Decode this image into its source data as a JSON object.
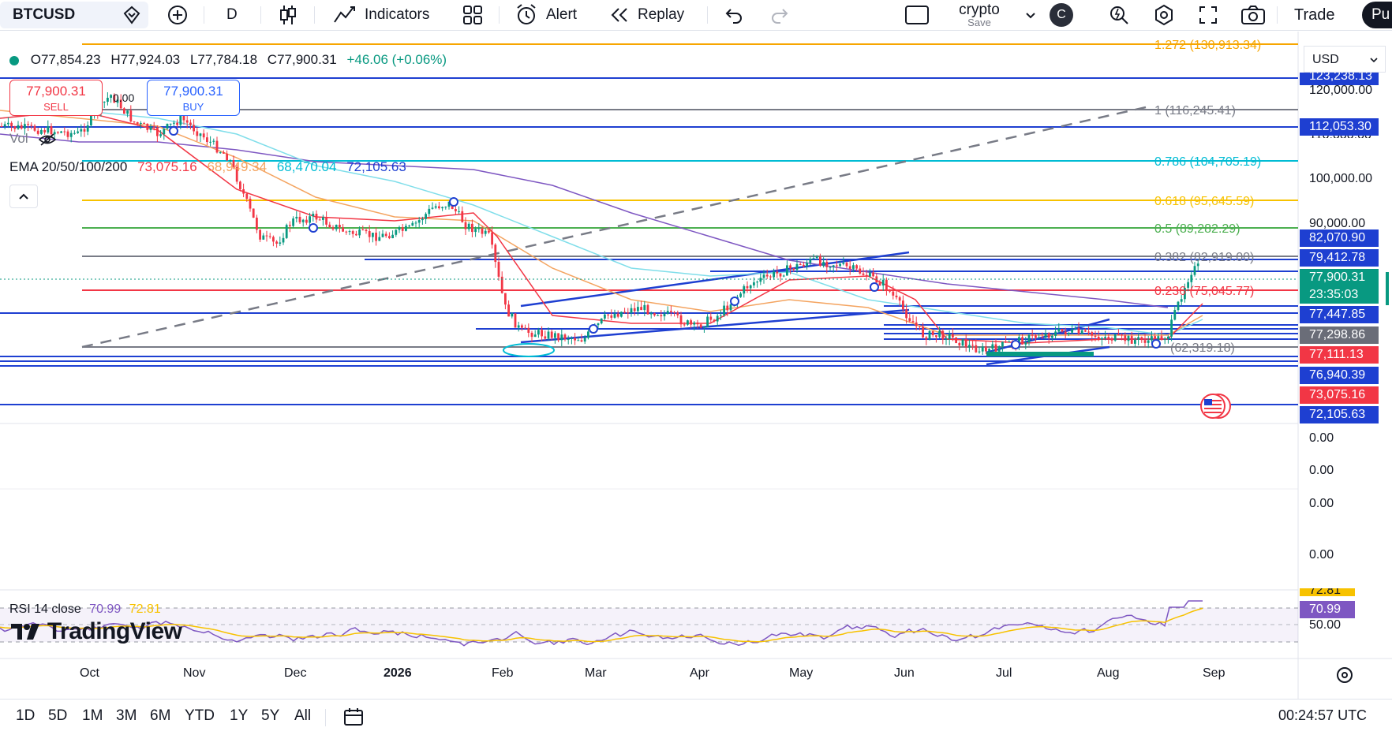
{
  "toolbar": {
    "symbol": "BTCUSD",
    "interval": "D",
    "indicators_label": "Indicators",
    "alert_label": "Alert",
    "replay_label": "Replay",
    "layout_name": "crypto",
    "layout_save": "Save",
    "avatar_letter": "C",
    "trade_label": "Trade",
    "publish_label": "Pu"
  },
  "ohlc": {
    "open": "O77,854.23",
    "high": "H77,924.03",
    "low": "L77,784.18",
    "close": "C77,900.31",
    "change": "+46.06 (+0.06%)"
  },
  "sell": {
    "price": "77,900.31",
    "label": "SELL"
  },
  "buy": {
    "price": "77,900.31",
    "label": "BUY"
  },
  "spread": "0.00",
  "vol_label": "Vol",
  "ema": {
    "label": "EMA 20/50/100/200",
    "v20": "73,075.16",
    "v50": "68,949.34",
    "v100": "68,470.04",
    "v200": "72,105.63"
  },
  "rsi": {
    "label": "RSI 14 close",
    "v1": "70.99",
    "v2": "72.81"
  },
  "currency": "USD",
  "watermark": "TradingView",
  "fib_labels": [
    "1.272 (130,913.34)",
    "1 (116,245.41)",
    "0.786 (104,705.19)",
    "0.618 (95,645.59)",
    "0.5 (89,282.29)",
    "0.382 (82,919.00)",
    "0.236 (75,045.77)",
    "(62,319.18)"
  ],
  "price_axis": [
    "123,238.13",
    "120,000.00",
    "110,000.00",
    "100,000.00",
    "90,000.00"
  ],
  "price_tags": [
    {
      "text": "112,053.30",
      "color": "#1e3fd1"
    },
    {
      "text": "82,070.90",
      "color": "#1e3fd1"
    },
    {
      "text": "79,412.78",
      "color": "#1e3fd1"
    },
    {
      "text": "77,900.31",
      "color": "#089981"
    },
    {
      "text": "23:35:03",
      "color": "#089981"
    },
    {
      "text": "77,447.85",
      "color": "#1e3fd1"
    },
    {
      "text": "77,298.86",
      "color": "#6a6d78"
    },
    {
      "text": "77,111.13",
      "color": "#f23645"
    },
    {
      "text": "76,940.39",
      "color": "#1e3fd1"
    },
    {
      "text": "73,075.16",
      "color": "#f23645"
    },
    {
      "text": "72,105.63",
      "color": "#1e3fd1"
    }
  ],
  "zero_labels": [
    "0.00",
    "0.00",
    "0.00",
    "0.00"
  ],
  "rsi_axis": {
    "tag_top": "72.81",
    "tag": "70.99",
    "mid": "50.00"
  },
  "months": [
    "Oct",
    "Nov",
    "Dec",
    "2026",
    "Feb",
    "Mar",
    "Apr",
    "May",
    "Jun",
    "Jul",
    "Aug",
    "Sep"
  ],
  "ranges": [
    "1D",
    "5D",
    "1M",
    "3M",
    "6M",
    "YTD",
    "1Y",
    "5Y",
    "All"
  ],
  "clock": "00:24:57 UTC"
}
